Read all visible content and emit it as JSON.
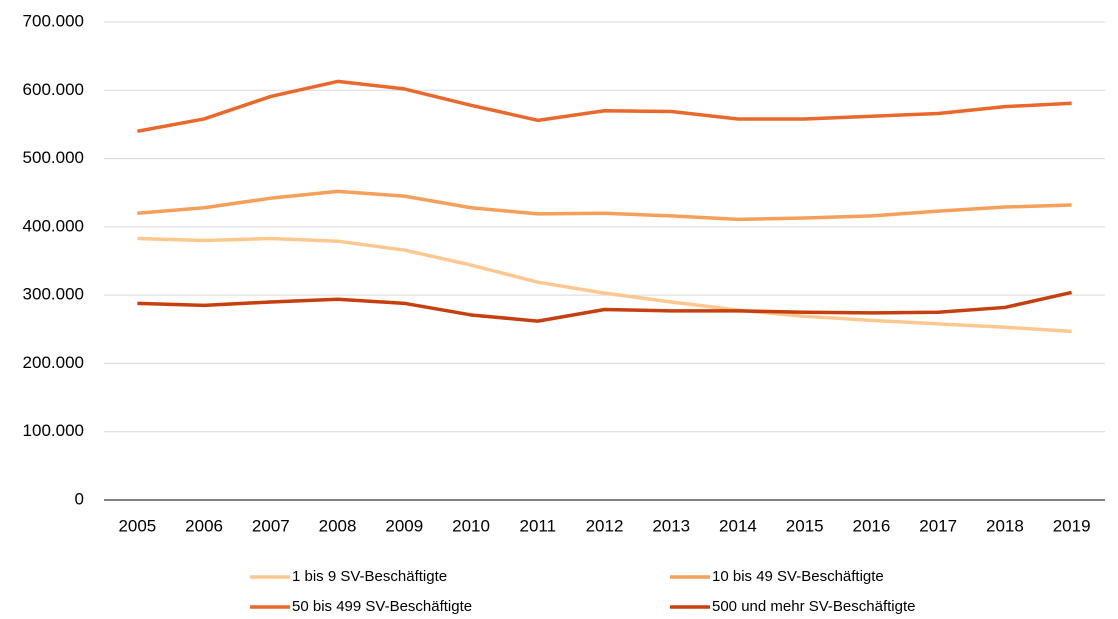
{
  "chart_data": {
    "type": "line",
    "categories": [
      "2005",
      "2006",
      "2007",
      "2008",
      "2009",
      "2010",
      "2011",
      "2012",
      "2013",
      "2014",
      "2015",
      "2016",
      "2017",
      "2018",
      "2019"
    ],
    "series": [
      {
        "name": "1 bis 9 SV-Beschäftigte",
        "color": "#fdc890",
        "values": [
          383000,
          380000,
          383000,
          379000,
          366000,
          344000,
          319000,
          303000,
          290000,
          278000,
          269000,
          263000,
          258000,
          253000,
          247000
        ]
      },
      {
        "name": "10 bis 49 SV-Beschäftigte",
        "color": "#f4a05a",
        "values": [
          420000,
          428000,
          442000,
          452000,
          445000,
          428000,
          419000,
          420000,
          416000,
          411000,
          413000,
          416000,
          423000,
          429000,
          432000
        ]
      },
      {
        "name": "50 bis 499 SV-Beschäftigte",
        "color": "#e8692b",
        "values": [
          540000,
          558000,
          591000,
          613000,
          602000,
          578000,
          556000,
          570000,
          569000,
          558000,
          558000,
          562000,
          566000,
          576000,
          581000
        ]
      },
      {
        "name": "500 und mehr SV-Beschäftigte",
        "color": "#c6400f",
        "values": [
          288000,
          285000,
          290000,
          294000,
          288000,
          271000,
          262000,
          279000,
          277000,
          277000,
          275000,
          274000,
          275000,
          282000,
          304000
        ]
      }
    ],
    "ylim": [
      0,
      700000
    ],
    "yticks": [
      0,
      {
        "value": 100000,
        "label": "100.000"
      },
      {
        "value": 200000,
        "label": "200.000"
      },
      {
        "value": 300000,
        "label": "300.000"
      },
      {
        "value": 400000,
        "label": "400.000"
      },
      {
        "value": 500000,
        "label": "500.000"
      },
      {
        "value": 600000,
        "label": "600.000"
      },
      {
        "value": 700000,
        "label": "700.000"
      }
    ],
    "grid": true,
    "legend": "bottom"
  }
}
